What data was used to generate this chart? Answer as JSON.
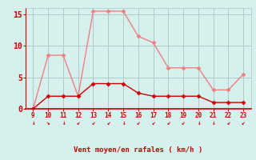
{
  "x": [
    9,
    10,
    11,
    12,
    13,
    14,
    15,
    16,
    17,
    18,
    19,
    20,
    21,
    22,
    23
  ],
  "rafales": [
    0,
    8.5,
    8.5,
    2,
    15.5,
    15.5,
    15.5,
    11.5,
    10.5,
    6.5,
    6.5,
    6.5,
    3,
    3,
    5.5
  ],
  "moyen": [
    0,
    2,
    2,
    2,
    4,
    4,
    4,
    2.5,
    2,
    2,
    2,
    2,
    1,
    1,
    1
  ],
  "line_color_rafales": "#f08080",
  "line_color_moyen": "#cc0000",
  "bg_color": "#d6f0ee",
  "grid_color": "#b0c8c8",
  "xlabel": "Vent moyen/en rafales ( km/h )",
  "tick_color": "#cc0000",
  "ylim": [
    0,
    16
  ],
  "yticks": [
    0,
    5,
    10,
    15
  ],
  "xlim": [
    8.5,
    23.5
  ],
  "spine_color": "#cc0000",
  "arrow_color": "#cc0000",
  "arrow_symbols": [
    "↓",
    "↘",
    "↓",
    "↙",
    "↙",
    "↙",
    "↓",
    "↙",
    "↙",
    "↙",
    "↙",
    "↓",
    "↓",
    "↙",
    "↙"
  ]
}
